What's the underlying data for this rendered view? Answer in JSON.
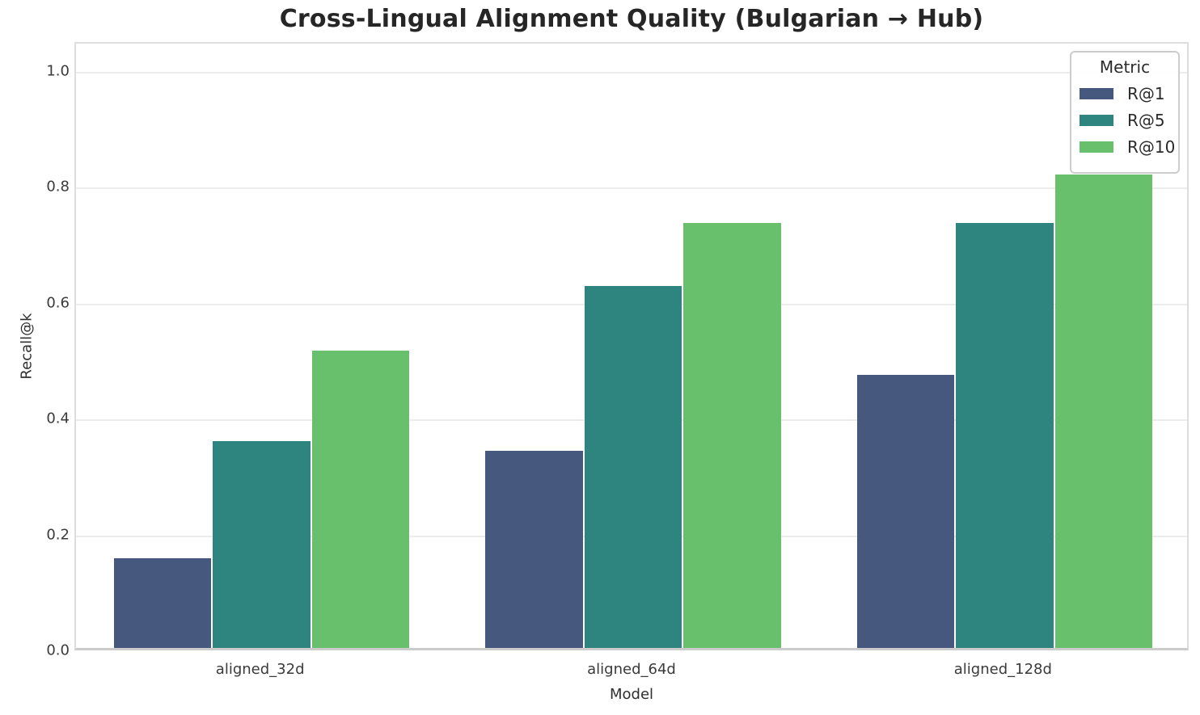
{
  "title": "Cross-Lingual Alignment Quality (Bulgarian → Hub)",
  "chart_data": {
    "type": "bar",
    "title": "Cross-Lingual Alignment Quality (Bulgarian → Hub)",
    "xlabel": "Model",
    "ylabel": "Recall@k",
    "categories": [
      "aligned_32d",
      "aligned_64d",
      "aligned_128d"
    ],
    "series": [
      {
        "name": "R@1",
        "color": "#46587e",
        "values": [
          0.155,
          0.34,
          0.471
        ]
      },
      {
        "name": "R@5",
        "color": "#2e857f",
        "values": [
          0.357,
          0.625,
          0.734
        ]
      },
      {
        "name": "R@10",
        "color": "#68c06c",
        "values": [
          0.513,
          0.734,
          0.817
        ]
      }
    ],
    "ylim": [
      0,
      1.05
    ],
    "yticks": [
      0.0,
      0.2,
      0.4,
      0.6,
      0.8,
      1.0
    ],
    "grid": true,
    "legend": {
      "title": "Metric",
      "position": "upper right"
    }
  }
}
